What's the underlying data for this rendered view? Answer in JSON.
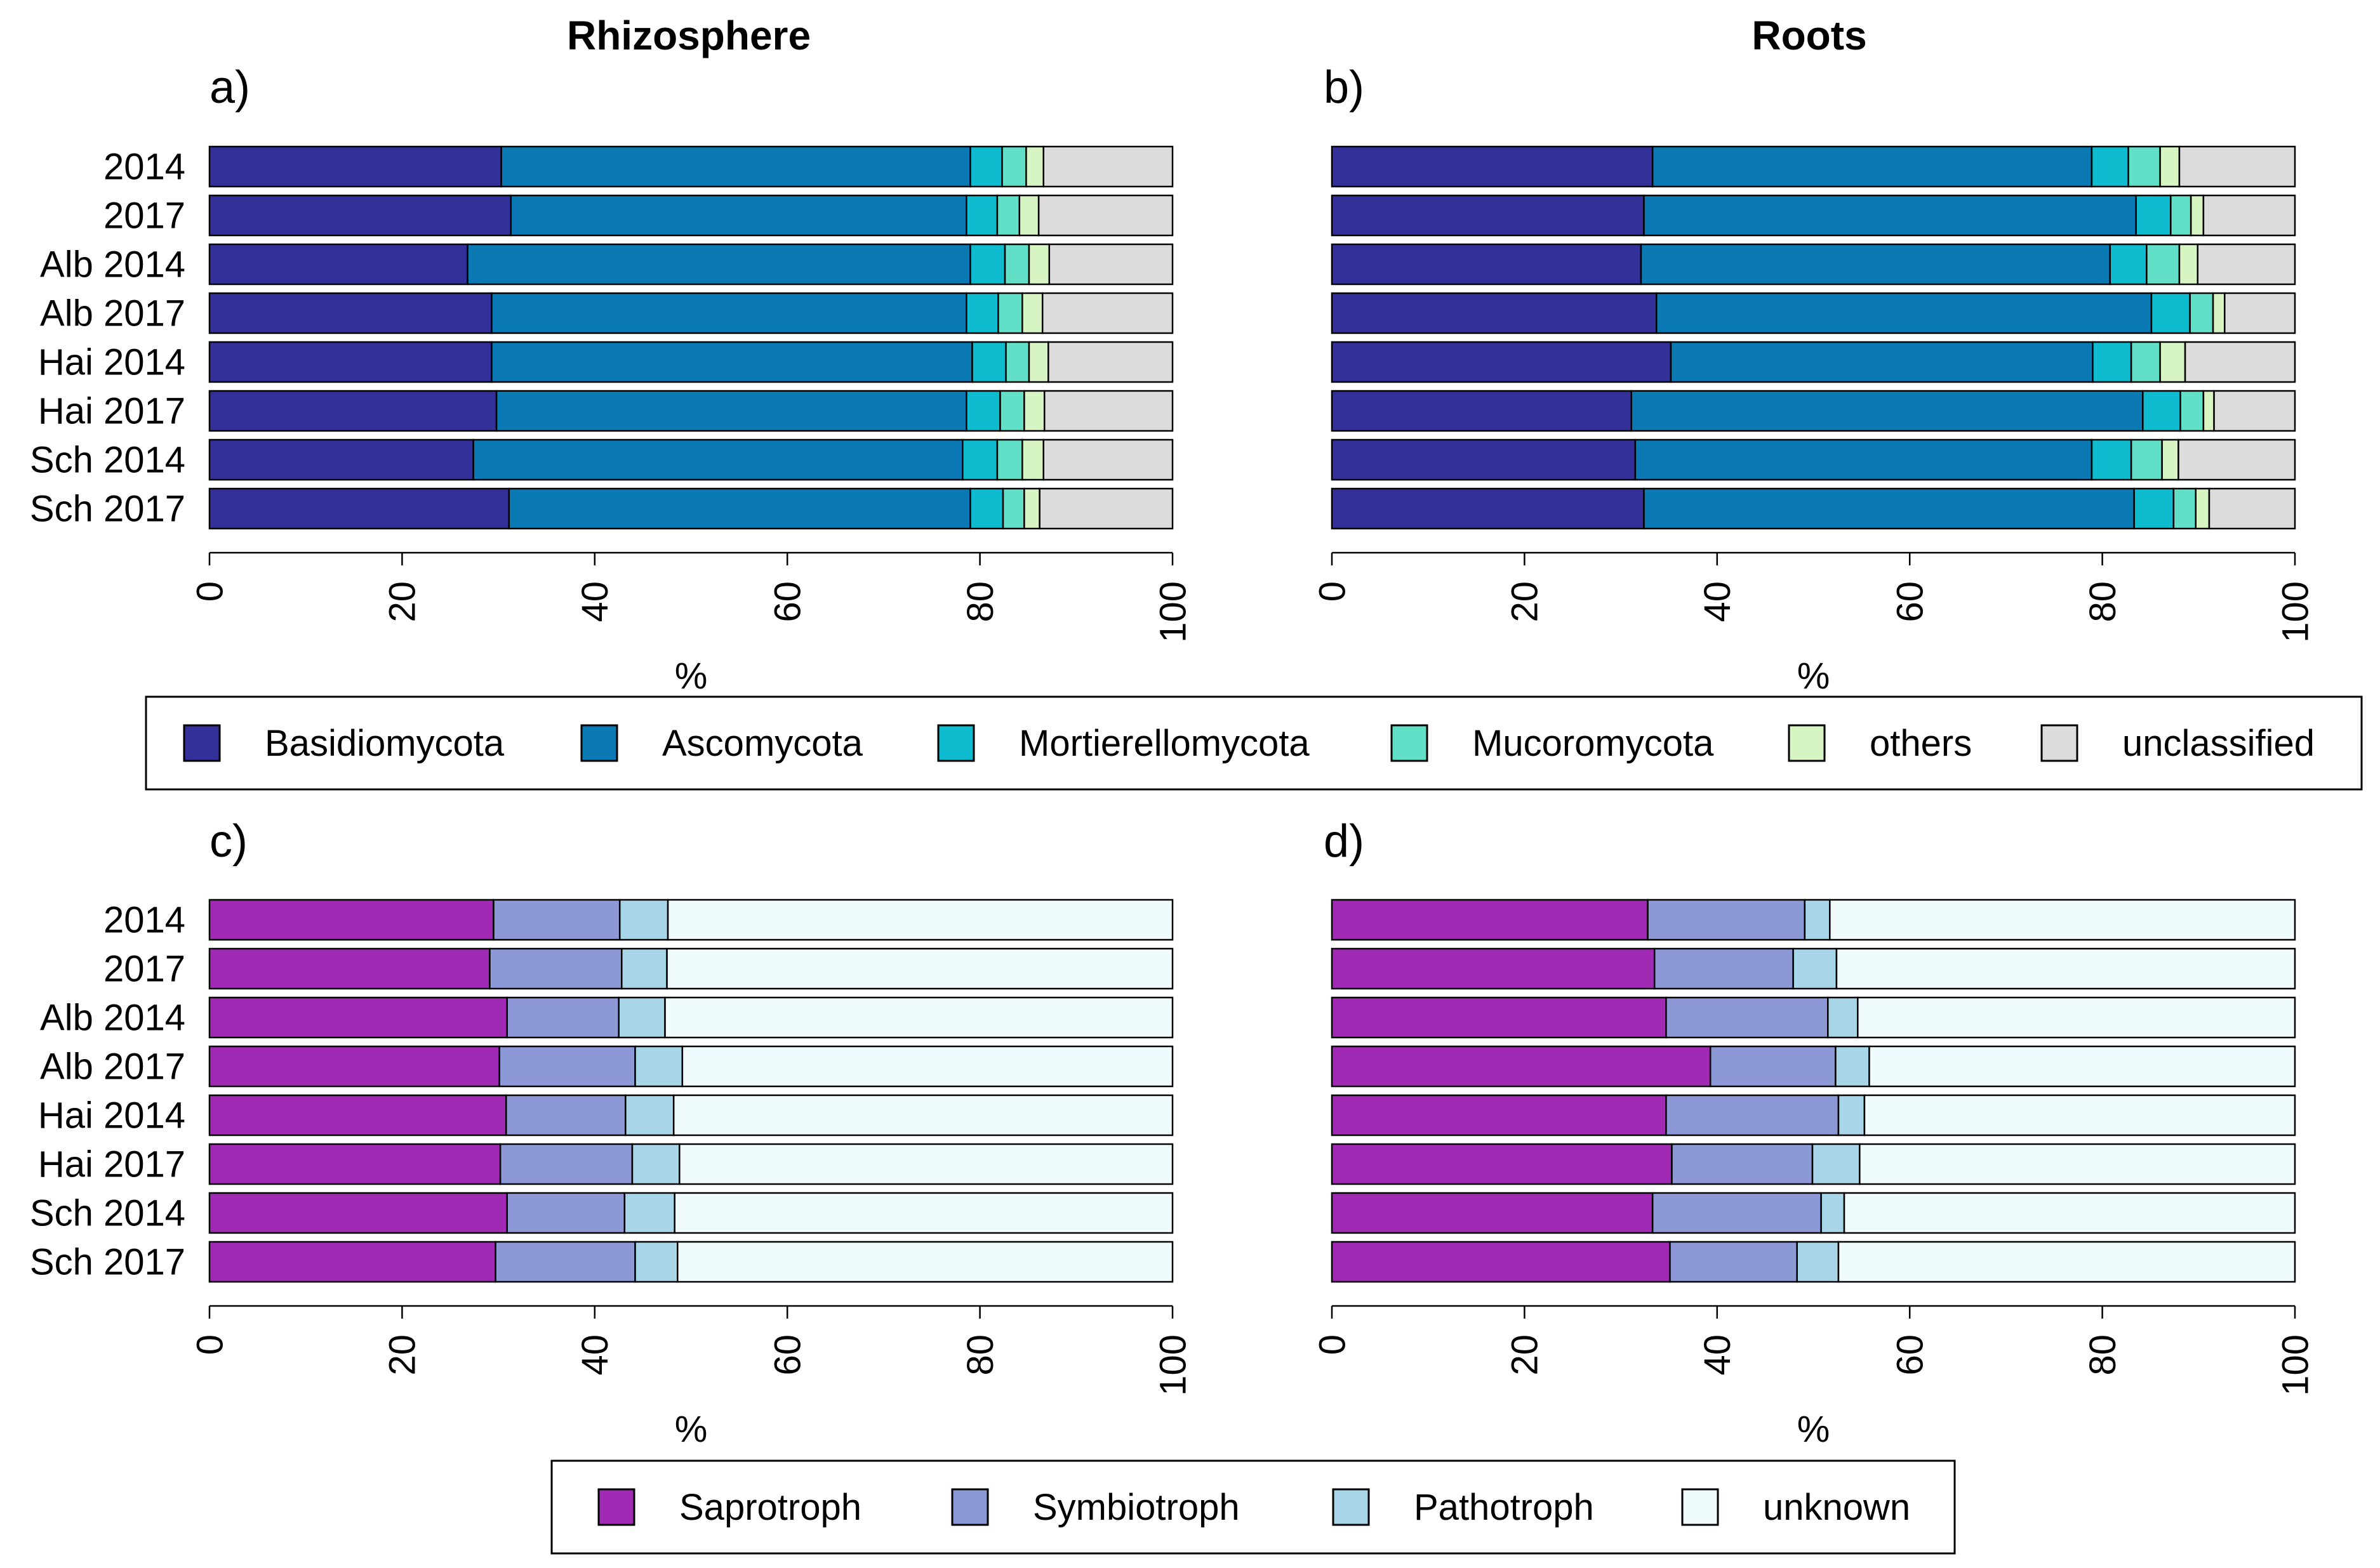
{
  "headers": {
    "left": "Rhizosphere",
    "right": "Roots"
  },
  "axis_label": "%",
  "ticks": [
    "0",
    "20",
    "40",
    "60",
    "80",
    "100"
  ],
  "legends": {
    "phylum": [
      {
        "label": "Basidiomycota",
        "color": "#33309a"
      },
      {
        "label": "Ascomycota",
        "color": "#0b79b3"
      },
      {
        "label": "Mortierellomycota",
        "color": "#0fbccf"
      },
      {
        "label": "Mucoromycota",
        "color": "#62dfc7"
      },
      {
        "label": "others",
        "color": "#d6f5c2"
      },
      {
        "label": "unclassified",
        "color": "#dcdcdc"
      }
    ],
    "guild": [
      {
        "label": "Saprotroph",
        "color": "#a12ab5"
      },
      {
        "label": "Symbiotroph",
        "color": "#8c99d6"
      },
      {
        "label": "Pathotroph",
        "color": "#a8d6e8"
      },
      {
        "label": "unknown",
        "color": "#effbfd"
      }
    ]
  },
  "chart_data": [
    {
      "type": "bar",
      "orientation": "horizontal",
      "stacked": true,
      "panel": "a)",
      "title": "Rhizosphere",
      "xlabel": "%",
      "xlim": [
        0,
        100
      ],
      "legend": "phylum",
      "categories": [
        "2014",
        "2017",
        "Alb 2014",
        "Alb 2017",
        "Hai 2014",
        "Hai 2017",
        "Sch 2014",
        "Sch 2017"
      ],
      "series": [
        {
          "name": "Basidiomycota",
          "values": [
            30.3,
            31.3,
            26.8,
            29.3,
            29.3,
            29.8,
            27.4,
            31.1
          ]
        },
        {
          "name": "Ascomycota",
          "values": [
            48.7,
            47.3,
            52.2,
            49.3,
            49.9,
            48.8,
            50.8,
            47.9
          ]
        },
        {
          "name": "Mortierellomycota",
          "values": [
            3.3,
            3.2,
            3.6,
            3.3,
            3.5,
            3.5,
            3.6,
            3.4
          ]
        },
        {
          "name": "Mucoromycota",
          "values": [
            2.5,
            2.3,
            2.5,
            2.5,
            2.4,
            2.5,
            2.6,
            2.2
          ]
        },
        {
          "name": "others",
          "values": [
            1.8,
            2.0,
            2.1,
            2.1,
            2.0,
            2.1,
            2.2,
            1.6
          ]
        },
        {
          "name": "unclassified",
          "values": [
            13.4,
            13.9,
            12.8,
            13.5,
            12.9,
            13.3,
            13.4,
            13.8
          ]
        }
      ]
    },
    {
      "type": "bar",
      "orientation": "horizontal",
      "stacked": true,
      "panel": "b)",
      "title": "Roots",
      "xlabel": "%",
      "xlim": [
        0,
        100
      ],
      "legend": "phylum",
      "categories": [
        "2014",
        "2017",
        "Alb 2014",
        "Alb 2017",
        "Hai 2014",
        "Hai 2017",
        "Sch 2014",
        "Sch 2017"
      ],
      "series": [
        {
          "name": "Basidiomycota",
          "values": [
            33.3,
            32.4,
            32.1,
            33.7,
            35.2,
            31.1,
            31.5,
            32.4
          ]
        },
        {
          "name": "Ascomycota",
          "values": [
            45.6,
            51.1,
            48.7,
            51.4,
            43.8,
            53.1,
            47.4,
            50.9
          ]
        },
        {
          "name": "Mortierellomycota",
          "values": [
            3.8,
            3.6,
            3.8,
            4.0,
            4.0,
            3.9,
            4.1,
            4.1
          ]
        },
        {
          "name": "Mucoromycota",
          "values": [
            3.3,
            2.1,
            3.4,
            2.4,
            3.0,
            2.4,
            3.2,
            2.3
          ]
        },
        {
          "name": "others",
          "values": [
            2.0,
            1.3,
            1.9,
            1.2,
            2.6,
            1.1,
            1.7,
            1.4
          ]
        },
        {
          "name": "unclassified",
          "values": [
            12.0,
            9.5,
            10.1,
            7.3,
            11.4,
            8.4,
            12.1,
            8.9
          ]
        }
      ]
    },
    {
      "type": "bar",
      "orientation": "horizontal",
      "stacked": true,
      "panel": "c)",
      "xlabel": "%",
      "xlim": [
        0,
        100
      ],
      "legend": "guild",
      "categories": [
        "2014",
        "2017",
        "Alb 2014",
        "Alb 2017",
        "Hai 2014",
        "Hai 2017",
        "Sch 2014",
        "Sch 2017"
      ],
      "series": [
        {
          "name": "Saprotroph",
          "values": [
            29.5,
            29.1,
            30.9,
            30.1,
            30.8,
            30.2,
            30.9,
            29.7
          ]
        },
        {
          "name": "Symbiotroph",
          "values": [
            13.1,
            13.7,
            11.6,
            14.1,
            12.4,
            13.7,
            12.2,
            14.5
          ]
        },
        {
          "name": "Pathotroph",
          "values": [
            5.0,
            4.7,
            4.8,
            4.9,
            5.0,
            4.9,
            5.2,
            4.4
          ]
        },
        {
          "name": "unknown",
          "values": [
            52.4,
            52.5,
            52.7,
            50.9,
            51.8,
            51.2,
            51.7,
            51.4
          ]
        }
      ]
    },
    {
      "type": "bar",
      "orientation": "horizontal",
      "stacked": true,
      "panel": "d)",
      "xlabel": "%",
      "xlim": [
        0,
        100
      ],
      "legend": "guild",
      "categories": [
        "2014",
        "2017",
        "Alb 2014",
        "Alb 2017",
        "Hai 2014",
        "Hai 2017",
        "Sch 2014",
        "Sch 2017"
      ],
      "series": [
        {
          "name": "Saprotroph",
          "values": [
            32.8,
            33.5,
            34.7,
            39.3,
            34.7,
            35.3,
            33.3,
            35.1
          ]
        },
        {
          "name": "Symbiotroph",
          "values": [
            16.3,
            14.4,
            16.8,
            13.0,
            17.9,
            14.6,
            17.5,
            13.2
          ]
        },
        {
          "name": "Pathotroph",
          "values": [
            2.6,
            4.5,
            3.1,
            3.5,
            2.7,
            4.9,
            2.4,
            4.3
          ]
        },
        {
          "name": "unknown",
          "values": [
            48.3,
            47.6,
            45.4,
            44.2,
            44.7,
            45.2,
            46.8,
            47.4
          ]
        }
      ]
    }
  ]
}
